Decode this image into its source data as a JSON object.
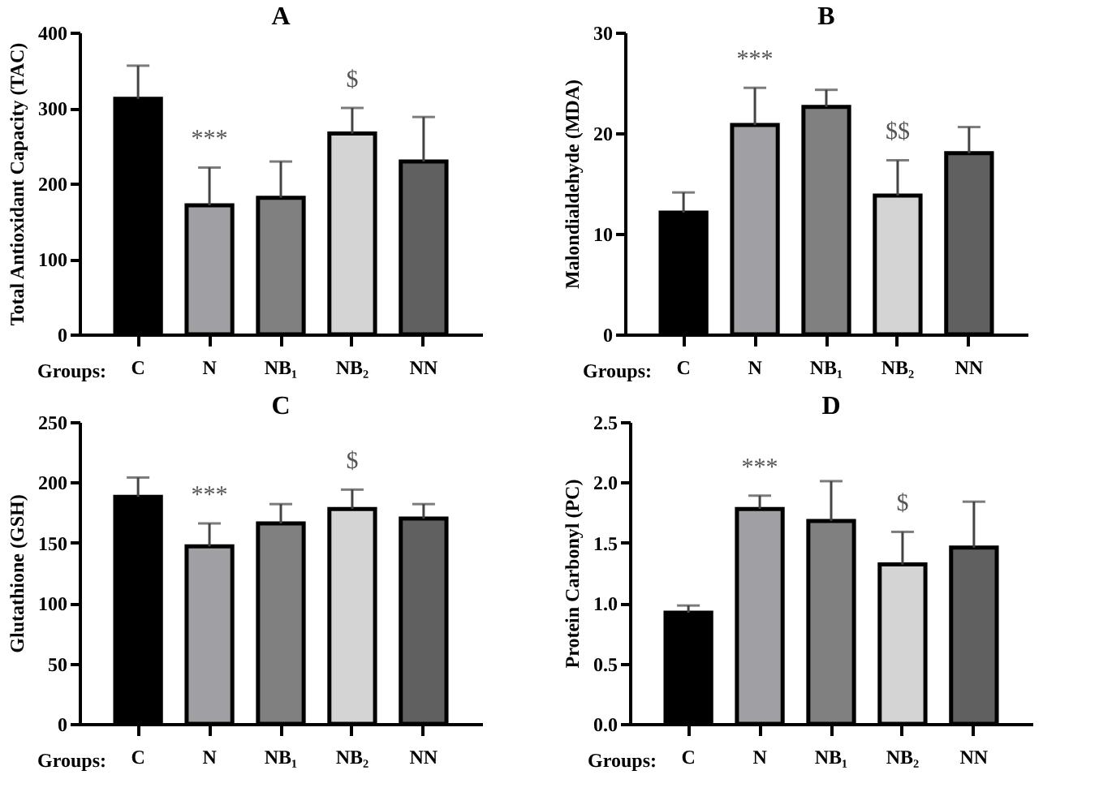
{
  "chart_data": [
    {
      "type": "bar",
      "title": "A",
      "xlabel": "Groups:",
      "ylabel": "Total Antioxidant Capacity (TAC)",
      "categories": [
        "C",
        "N",
        "NB₁",
        "NB₂",
        "NN"
      ],
      "values": [
        312,
        171,
        181,
        266,
        229
      ],
      "colors": [
        "#000000",
        "#a0a0a4",
        "#808080",
        "#d4d4d4",
        "#606060"
      ],
      "errors": [
        [
          312,
          356
        ],
        [
          171,
          221
        ],
        [
          181,
          229
        ],
        [
          266,
          300
        ],
        [
          229,
          288
        ]
      ],
      "ylim": [
        0,
        400
      ],
      "yticks": [
        0,
        100,
        200,
        300,
        400
      ],
      "grid": false,
      "annotations": [
        {
          "text": "***",
          "x": "N",
          "y": 221
        },
        {
          "text": "$",
          "x": "NB₂",
          "y": 300
        }
      ]
    },
    {
      "type": "bar",
      "title": "B",
      "xlabel": "Groups:",
      "ylabel": "Malondialdehyde (MDA)",
      "categories": [
        "C",
        "N",
        "NB₁",
        "NB₂",
        "NN"
      ],
      "values": [
        12.1,
        20.8,
        22.6,
        13.8,
        18.0
      ],
      "colors": [
        "#000000",
        "#a0a0a4",
        "#808080",
        "#d4d4d4",
        "#606060"
      ],
      "errors": [
        [
          12.1,
          14.1
        ],
        [
          20.8,
          24.5
        ],
        [
          22.6,
          24.3
        ],
        [
          13.8,
          17.3
        ],
        [
          18.0,
          20.6
        ]
      ],
      "ylim": [
        0,
        30
      ],
      "yticks": [
        0,
        10,
        20,
        30
      ],
      "grid": false,
      "annotations": [
        {
          "text": "***",
          "x": "N",
          "y": 24.5
        },
        {
          "text": "$$",
          "x": "NB₂",
          "y": 17.3
        }
      ]
    },
    {
      "type": "bar",
      "title": "C",
      "xlabel": "Groups:",
      "ylabel": "Glutathione (GSH)",
      "categories": [
        "C",
        "N",
        "NB₁",
        "NB₂",
        "NN"
      ],
      "values": [
        188,
        147,
        166,
        178,
        170
      ],
      "colors": [
        "#000000",
        "#a0a0a4",
        "#808080",
        "#d4d4d4",
        "#606060"
      ],
      "errors": [
        [
          188,
          204
        ],
        [
          147,
          166
        ],
        [
          166,
          182
        ],
        [
          178,
          194
        ],
        [
          170,
          182
        ]
      ],
      "ylim": [
        0,
        250
      ],
      "yticks": [
        0,
        50,
        100,
        150,
        200,
        250
      ],
      "grid": false,
      "annotations": [
        {
          "text": "***",
          "x": "N",
          "y": 166
        },
        {
          "text": "$",
          "x": "NB₂",
          "y": 194
        }
      ]
    },
    {
      "type": "bar",
      "title": "D",
      "xlabel": "Groups:",
      "ylabel": "Protein Carbonyl (PC)",
      "categories": [
        "C",
        "N",
        "NB₁",
        "NB₂",
        "NN"
      ],
      "values": [
        0.92,
        1.78,
        1.68,
        1.32,
        1.46
      ],
      "colors": [
        "#000000",
        "#a0a0a4",
        "#808080",
        "#d4d4d4",
        "#606060"
      ],
      "errors": [
        [
          0.92,
          0.98
        ],
        [
          1.78,
          1.89
        ],
        [
          1.68,
          2.01
        ],
        [
          1.32,
          1.59
        ],
        [
          1.46,
          1.84
        ]
      ],
      "ylim": [
        0,
        2.5
      ],
      "yticks": [
        {
          "value": 0,
          "label": "0.0"
        },
        {
          "value": 0.5,
          "label": "0.5"
        },
        {
          "value": 1,
          "label": "1.0"
        },
        {
          "value": 1.5,
          "label": "1.5"
        },
        {
          "value": 2,
          "label": "2.0"
        },
        {
          "value": 2.5,
          "label": "2.5"
        }
      ],
      "grid": false,
      "annotations": [
        {
          "text": "***",
          "x": "N",
          "y": 1.89
        },
        {
          "text": "$",
          "x": "NB₂",
          "y": 1.59
        }
      ]
    }
  ]
}
